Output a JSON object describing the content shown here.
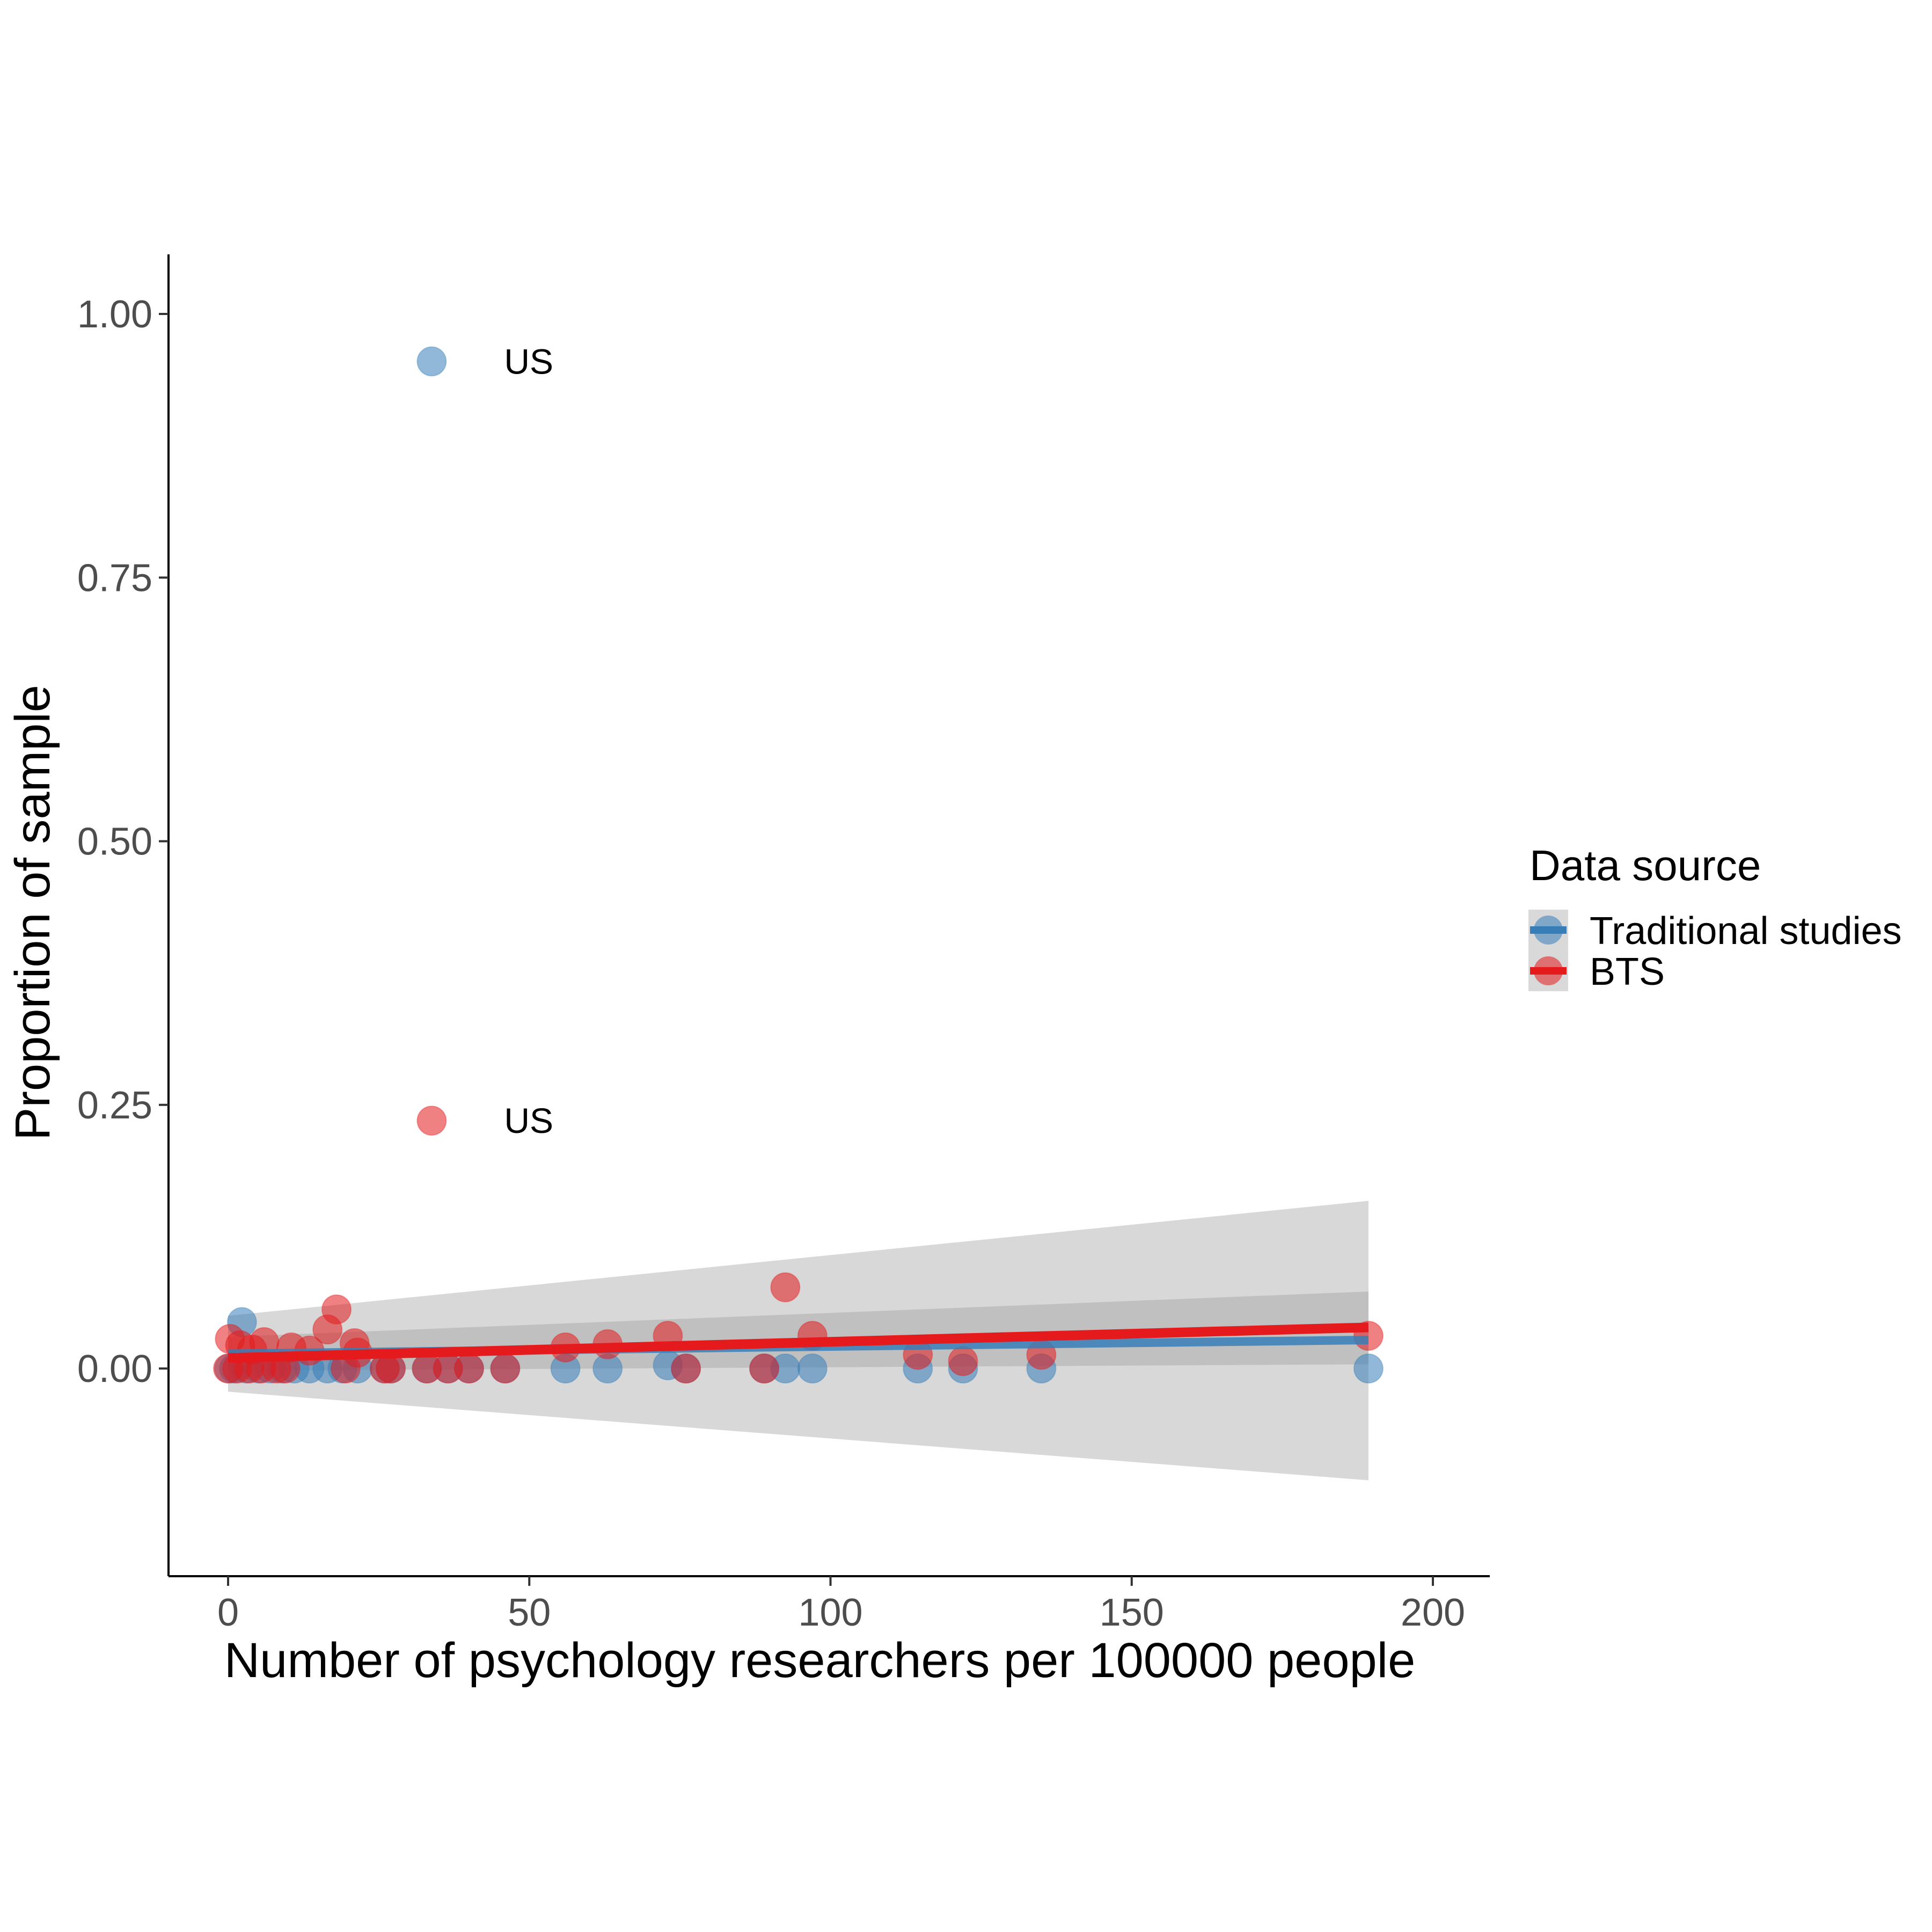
{
  "chart_data": {
    "type": "scatter",
    "title": "",
    "xlabel": "Number of psychology researchers per 100000 people",
    "ylabel": "Proportion of sample",
    "xlim": [
      -10,
      210
    ],
    "ylim": [
      -0.38,
      2.5
    ],
    "x_ticks": [
      0,
      50,
      100,
      150,
      200
    ],
    "x_tick_labels": [
      "0",
      "50",
      "100",
      "150",
      "200"
    ],
    "y_ticks": [
      0,
      0.25,
      0.5,
      0.75,
      1.0
    ],
    "y_tick_labels": [
      "0.00",
      "0.25",
      "0.50",
      "0.75",
      "1.00"
    ],
    "grid": false,
    "legend": {
      "title": "Data source",
      "placement": "right"
    },
    "series": [
      {
        "name": "Traditional studies",
        "color": "#377eb8",
        "points": [
          {
            "x": 33.8,
            "y": 0.955,
            "label": "US"
          },
          {
            "x": 2.3,
            "y": 0.044
          },
          {
            "x": 0.2,
            "y": 0.0
          },
          {
            "x": 1.0,
            "y": 0.0
          },
          {
            "x": 3.0,
            "y": 0.0
          },
          {
            "x": 5.0,
            "y": 0.0
          },
          {
            "x": 7.0,
            "y": 0.0
          },
          {
            "x": 9.0,
            "y": 0.0
          },
          {
            "x": 11.0,
            "y": 0.0
          },
          {
            "x": 13.5,
            "y": 0.0
          },
          {
            "x": 16.5,
            "y": 0.0
          },
          {
            "x": 19.0,
            "y": 0.0
          },
          {
            "x": 21.5,
            "y": 0.0
          },
          {
            "x": 26.0,
            "y": 0.0
          },
          {
            "x": 27.0,
            "y": 0.0
          },
          {
            "x": 33.0,
            "y": 0.0
          },
          {
            "x": 36.5,
            "y": 0.0
          },
          {
            "x": 40.0,
            "y": 0.0
          },
          {
            "x": 46.0,
            "y": 0.0
          },
          {
            "x": 56.0,
            "y": 0.0
          },
          {
            "x": 63.0,
            "y": 0.0
          },
          {
            "x": 73.0,
            "y": 0.003
          },
          {
            "x": 76.0,
            "y": 0.0
          },
          {
            "x": 89.0,
            "y": 0.0
          },
          {
            "x": 92.5,
            "y": 0.0
          },
          {
            "x": 97.0,
            "y": 0.0
          },
          {
            "x": 114.5,
            "y": 0.0
          },
          {
            "x": 122.0,
            "y": 0.0
          },
          {
            "x": 135.0,
            "y": 0.0
          },
          {
            "x": 189.3,
            "y": 0.0
          }
        ],
        "trend": {
          "x": [
            0,
            189.3
          ],
          "y": [
            0.014,
            0.027
          ]
        },
        "ribbon": {
          "x": [
            0,
            189.3
          ],
          "lower": [
            -0.002,
            0.004
          ],
          "upper": [
            0.03,
            0.073
          ]
        }
      },
      {
        "name": "BTS",
        "color": "#e41a1c",
        "points": [
          {
            "x": 33.8,
            "y": 0.235,
            "label": "US"
          },
          {
            "x": 18.0,
            "y": 0.056
          },
          {
            "x": 92.5,
            "y": 0.077
          },
          {
            "x": 16.5,
            "y": 0.037
          },
          {
            "x": 0.3,
            "y": 0.028
          },
          {
            "x": 2.0,
            "y": 0.022
          },
          {
            "x": 4.0,
            "y": 0.018
          },
          {
            "x": 6.0,
            "y": 0.025
          },
          {
            "x": 10.5,
            "y": 0.02
          },
          {
            "x": 13.5,
            "y": 0.017
          },
          {
            "x": 21.0,
            "y": 0.024
          },
          {
            "x": 21.5,
            "y": 0.015
          },
          {
            "x": 56.0,
            "y": 0.02
          },
          {
            "x": 63.0,
            "y": 0.023
          },
          {
            "x": 73.0,
            "y": 0.031
          },
          {
            "x": 97.0,
            "y": 0.031
          },
          {
            "x": 114.5,
            "y": 0.013
          },
          {
            "x": 122.0,
            "y": 0.007
          },
          {
            "x": 135.0,
            "y": 0.013
          },
          {
            "x": 189.3,
            "y": 0.031
          },
          {
            "x": 0.0,
            "y": 0.0
          },
          {
            "x": 1.5,
            "y": 0.0
          },
          {
            "x": 3.5,
            "y": 0.0
          },
          {
            "x": 5.5,
            "y": 0.0
          },
          {
            "x": 8.0,
            "y": 0.0
          },
          {
            "x": 9.5,
            "y": 0.0
          },
          {
            "x": 19.5,
            "y": 0.0
          },
          {
            "x": 26.0,
            "y": 0.0
          },
          {
            "x": 27.0,
            "y": 0.0
          },
          {
            "x": 33.0,
            "y": 0.0
          },
          {
            "x": 36.5,
            "y": 0.0
          },
          {
            "x": 40.0,
            "y": 0.0
          },
          {
            "x": 46.0,
            "y": 0.0
          },
          {
            "x": 76.0,
            "y": 0.0
          },
          {
            "x": 89.0,
            "y": 0.0
          }
        ],
        "trend": {
          "x": [
            0,
            189.3
          ],
          "y": [
            0.01,
            0.039
          ]
        },
        "ribbon": {
          "x": [
            0,
            189.3
          ],
          "lower": [
            -0.022,
            -0.106
          ],
          "upper": [
            0.05,
            0.159
          ]
        }
      }
    ]
  }
}
